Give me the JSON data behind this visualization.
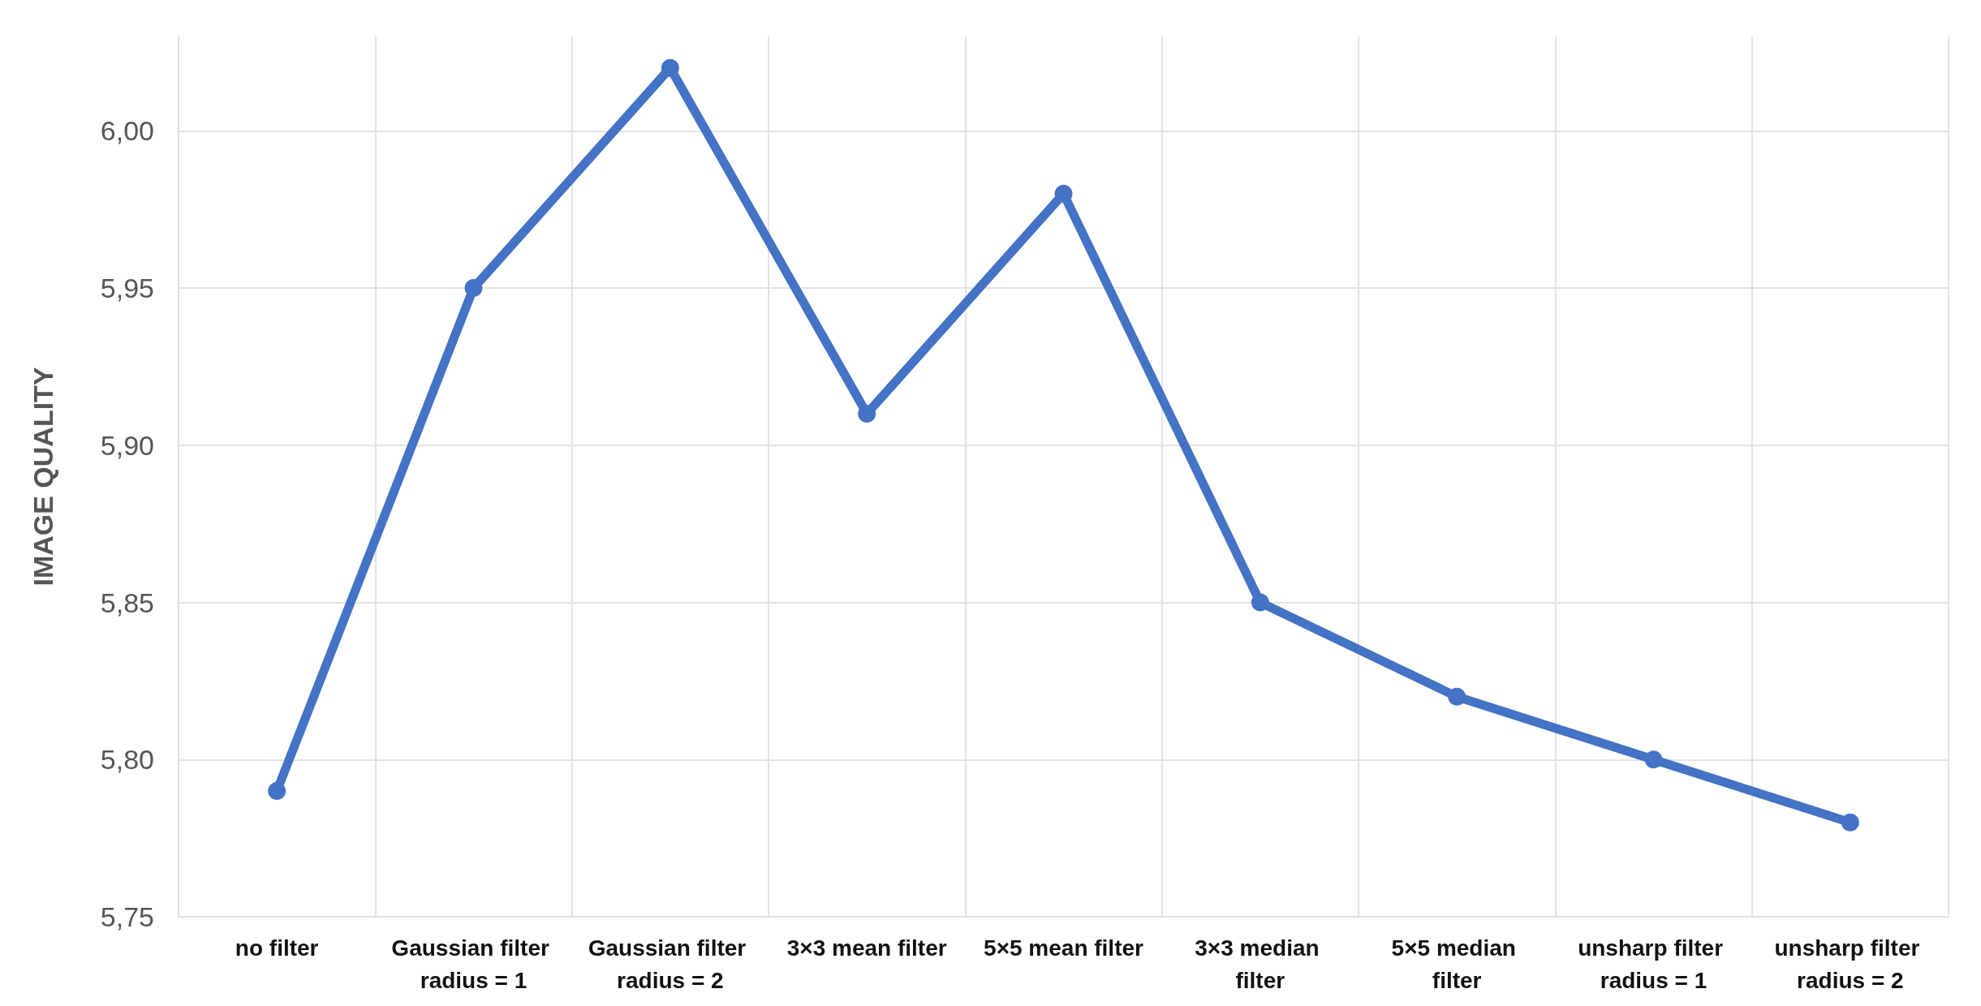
{
  "chart_data": {
    "type": "line",
    "ylabel": "IMAGE QUALITY",
    "categories": [
      "no filter",
      "Gaussian filter radius = 1",
      "Gaussian filter radius = 2",
      "3×3 mean filter",
      "5×5 mean filter",
      "3×3 median filter",
      "5×5 median filter",
      "unsharp filter radius = 1",
      "unsharp filter radius = 2"
    ],
    "series": [
      {
        "color": "#4472c4",
        "values": [
          5.79,
          5.95,
          6.02,
          5.91,
          5.98,
          5.85,
          5.82,
          5.8,
          5.78
        ]
      }
    ],
    "ylim": [
      5.75,
      6.03
    ],
    "yticks": [
      {
        "value": 5.75,
        "label": "5,75"
      },
      {
        "value": 5.8,
        "label": "5,80"
      },
      {
        "value": 5.85,
        "label": "5,85"
      },
      {
        "value": 5.9,
        "label": "5,90"
      },
      {
        "value": 5.95,
        "label": "5,95"
      },
      {
        "value": 6.0,
        "label": "6,00"
      }
    ],
    "grid": true,
    "marker": "circle",
    "line_style": "solid"
  }
}
